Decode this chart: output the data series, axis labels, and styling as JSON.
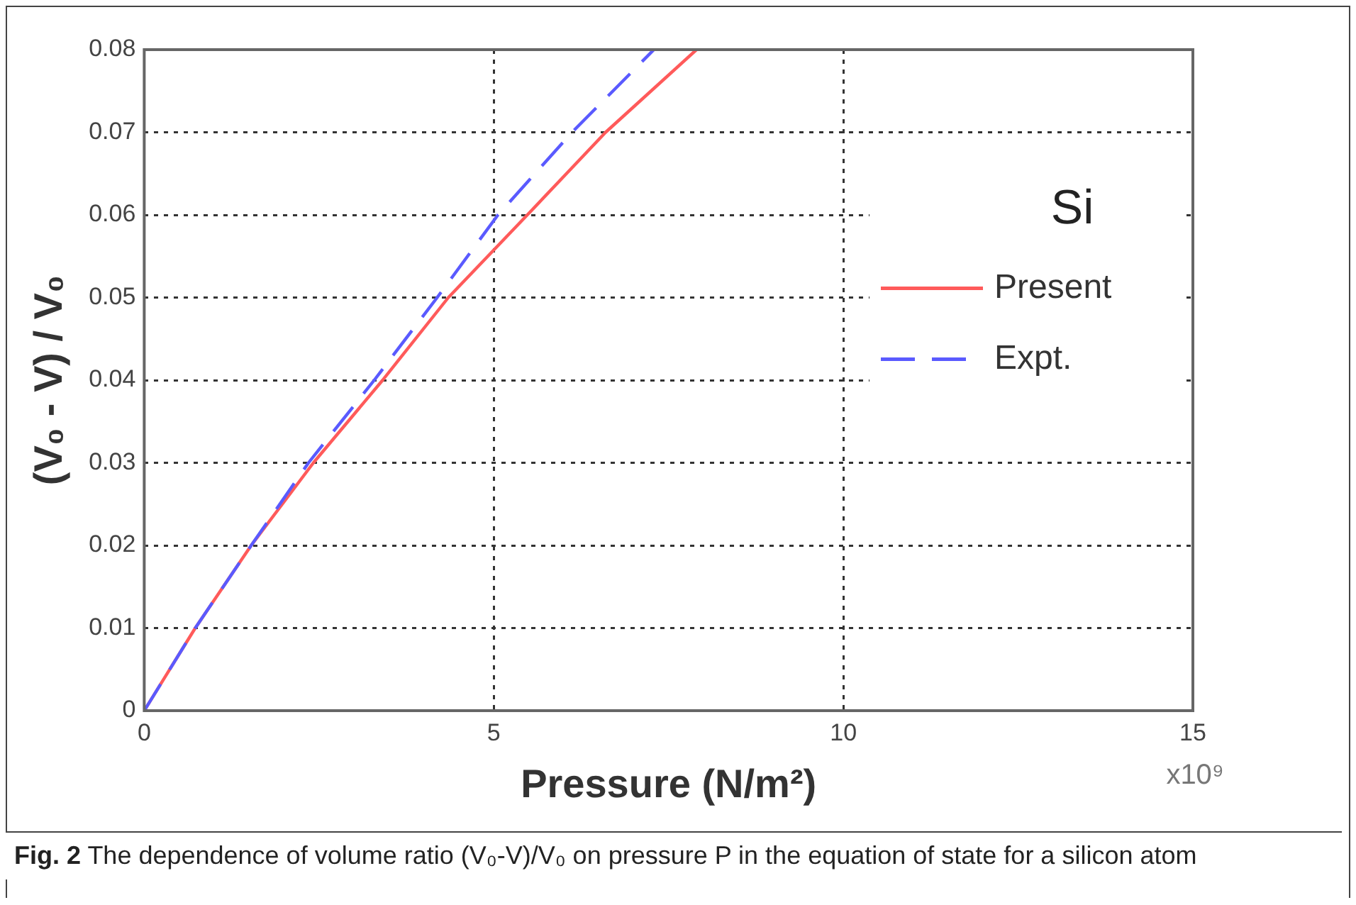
{
  "chart_data": {
    "type": "line",
    "xlabel": "Pressure (N/m²)",
    "ylabel": "(V₀ - V) / V₀",
    "legend_title": "Si",
    "legend": "right",
    "grid": true,
    "line_style": "solid",
    "marker": "none",
    "xlim": [
      0,
      15
    ],
    "xticks": [
      0,
      5,
      10,
      15
    ],
    "ylim": [
      0,
      0.08
    ],
    "yticks": [
      0,
      0.01,
      0.02,
      0.03,
      0.04,
      0.05,
      0.06,
      0.07,
      0.08
    ],
    "series": [
      {
        "name": "Present",
        "color": "#ff5a5a",
        "x": [
          0,
          0.73,
          1.53,
          2.42,
          3.41,
          4.35,
          5.48,
          6.6,
          7.9
        ],
        "values": [
          0,
          0.01,
          0.02,
          0.03,
          0.04,
          0.05,
          0.06,
          0.07,
          0.08
        ]
      },
      {
        "name": "Expt.",
        "color": "#5a5aff",
        "line_style": "dashed",
        "x": [
          0,
          0.73,
          1.53,
          2.35,
          3.29,
          4.19,
          5.06,
          6.12,
          7.29
        ],
        "values": [
          0,
          0.01,
          0.02,
          0.03,
          0.04,
          0.05,
          0.06,
          0.07,
          0.08
        ]
      }
    ],
    "annotations": [
      "x10⁹",
      "Fig. 2 The dependence of volume ratio (V₀-V)/V₀ on pressure P in the equation of state for a silicon atom"
    ]
  }
}
